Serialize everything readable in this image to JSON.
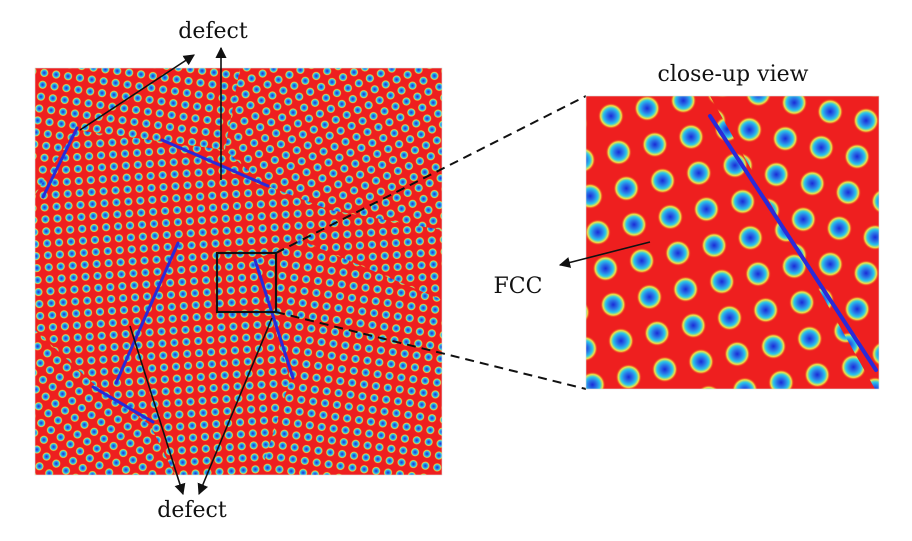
{
  "labels": {
    "defect_top": "defect",
    "defect_bottom": "defect",
    "fcc": "FCC",
    "closeup_title": "close-up view"
  },
  "colors": {
    "background_field": "#ee1f1f",
    "boundary_line": "#2a2ad8",
    "particle_ring": "#f2e640",
    "particle_mid": "#29c7e8",
    "particle_core": "#1a2ad6",
    "annotation": "#111111"
  }
}
